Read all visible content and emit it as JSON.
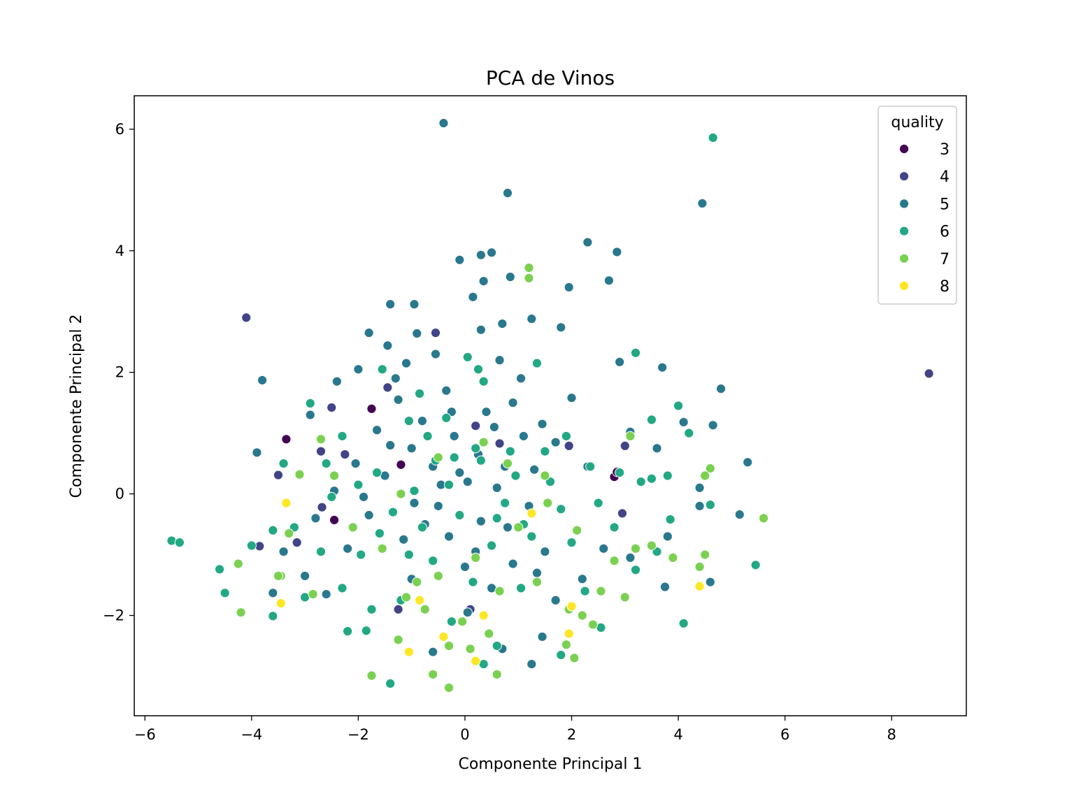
{
  "chart_data": {
    "type": "scatter",
    "title": "PCA de Vinos",
    "xlabel": "Componente Principal 1",
    "ylabel": "Componente Principal 2",
    "xlim": [
      -6.2,
      9.4
    ],
    "ylim": [
      -3.65,
      6.55
    ],
    "xticks": [
      -6,
      -4,
      -2,
      0,
      2,
      4,
      6,
      8
    ],
    "yticks": [
      -2,
      0,
      2,
      4,
      6
    ],
    "legend": {
      "title": "quality",
      "placement": "top-right"
    },
    "grid": false,
    "series": [
      {
        "name": "3",
        "color": "#440154",
        "points": [
          [
            -3.35,
            0.9
          ],
          [
            -1.75,
            1.4
          ],
          [
            -1.2,
            0.48
          ],
          [
            -2.45,
            -0.43
          ],
          [
            2.8,
            0.28
          ],
          [
            2.85,
            0.36
          ]
        ]
      },
      {
        "name": "4",
        "color": "#414487",
        "points": [
          [
            -4.1,
            2.9
          ],
          [
            8.7,
            1.98
          ],
          [
            -0.55,
            2.65
          ],
          [
            -2.5,
            1.42
          ],
          [
            -3.5,
            0.31
          ],
          [
            -2.7,
            0.7
          ],
          [
            -2.68,
            -0.22
          ],
          [
            -3.15,
            -0.8
          ],
          [
            -3.85,
            -0.86
          ],
          [
            -1.25,
            -1.9
          ],
          [
            0.1,
            -1.9
          ],
          [
            1.95,
            0.79
          ],
          [
            3.0,
            0.79
          ],
          [
            0.65,
            0.83
          ],
          [
            0.2,
            1.12
          ],
          [
            -1.45,
            1.75
          ],
          [
            -2.25,
            0.65
          ],
          [
            2.95,
            -0.32
          ]
        ]
      },
      {
        "name": "5",
        "color": "#2a788e",
        "points": [
          [
            -0.4,
            6.1
          ],
          [
            0.8,
            4.95
          ],
          [
            4.45,
            4.78
          ],
          [
            2.3,
            4.14
          ],
          [
            2.85,
            3.98
          ],
          [
            0.3,
            3.93
          ],
          [
            0.5,
            3.97
          ],
          [
            -0.1,
            3.85
          ],
          [
            0.85,
            3.57
          ],
          [
            2.7,
            3.51
          ],
          [
            0.35,
            3.5
          ],
          [
            1.95,
            3.4
          ],
          [
            -1.4,
            3.12
          ],
          [
            -0.95,
            3.12
          ],
          [
            0.15,
            3.24
          ],
          [
            -1.8,
            2.65
          ],
          [
            -0.9,
            2.64
          ],
          [
            1.25,
            2.88
          ],
          [
            0.7,
            2.8
          ],
          [
            1.8,
            2.74
          ],
          [
            -1.45,
            2.44
          ],
          [
            -1.1,
            2.15
          ],
          [
            3.7,
            2.08
          ],
          [
            4.8,
            1.73
          ],
          [
            2.9,
            2.17
          ],
          [
            -3.8,
            1.87
          ],
          [
            -2.4,
            1.85
          ],
          [
            -2.0,
            2.05
          ],
          [
            2.0,
            1.58
          ],
          [
            4.65,
            1.13
          ],
          [
            4.1,
            1.18
          ],
          [
            -3.9,
            0.68
          ],
          [
            3.1,
            1.02
          ],
          [
            5.3,
            0.52
          ],
          [
            4.4,
            0.1
          ],
          [
            5.15,
            -0.34
          ],
          [
            4.6,
            -1.45
          ],
          [
            3.75,
            -1.53
          ],
          [
            -3.6,
            -1.63
          ],
          [
            -2.6,
            -1.65
          ],
          [
            -1.4,
            -3.12
          ],
          [
            1.25,
            -2.8
          ],
          [
            1.45,
            -2.35
          ],
          [
            0.05,
            -1.95
          ],
          [
            0.3,
            -0.45
          ],
          [
            0.6,
            0.1
          ],
          [
            -0.6,
            0.45
          ],
          [
            -0.8,
            1.2
          ],
          [
            -1.0,
            0.75
          ],
          [
            -0.2,
            0.95
          ],
          [
            0.4,
            1.35
          ],
          [
            0.9,
            1.5
          ],
          [
            1.1,
            0.95
          ],
          [
            -0.5,
            -0.2
          ],
          [
            0.05,
            0.2
          ],
          [
            -1.5,
            0.3
          ],
          [
            -1.8,
            -0.35
          ],
          [
            -0.3,
            -0.7
          ],
          [
            0.8,
            -0.55
          ],
          [
            1.5,
            -0.95
          ],
          [
            2.2,
            -1.4
          ],
          [
            -2.2,
            -0.9
          ],
          [
            -2.8,
            -0.4
          ],
          [
            -3.0,
            -1.35
          ],
          [
            -1.0,
            -1.4
          ],
          [
            0.5,
            -1.55
          ],
          [
            1.7,
            -1.75
          ],
          [
            -0.35,
            1.7
          ],
          [
            0.65,
            2.2
          ],
          [
            1.05,
            1.9
          ],
          [
            -1.25,
            1.55
          ],
          [
            -1.65,
            1.05
          ],
          [
            0.25,
            0.65
          ],
          [
            -0.1,
            0.35
          ],
          [
            -0.75,
            -0.5
          ],
          [
            0.2,
            -0.95
          ],
          [
            1.3,
            0.4
          ],
          [
            1.45,
            1.15
          ],
          [
            -2.05,
            0.5
          ],
          [
            -2.45,
            0.05
          ],
          [
            -1.15,
            -0.75
          ],
          [
            0.0,
            -1.2
          ],
          [
            0.9,
            -1.15
          ],
          [
            2.6,
            -0.9
          ],
          [
            3.1,
            -1.05
          ],
          [
            3.8,
            -0.7
          ],
          [
            -0.55,
            2.3
          ],
          [
            0.3,
            2.7
          ],
          [
            1.7,
            0.85
          ],
          [
            -0.95,
            -0.15
          ],
          [
            0.75,
            0.45
          ],
          [
            -1.4,
            0.8
          ],
          [
            -0.25,
            1.35
          ],
          [
            1.2,
            -0.2
          ],
          [
            -2.9,
            1.3
          ],
          [
            -3.4,
            -0.95
          ],
          [
            2.3,
            0.45
          ],
          [
            3.6,
            0.75
          ],
          [
            4.4,
            -0.2
          ],
          [
            -0.6,
            -2.6
          ],
          [
            0.7,
            -2.55
          ],
          [
            -1.3,
            1.9
          ],
          [
            0.55,
            1.1
          ],
          [
            -0.45,
            0.15
          ],
          [
            -1.9,
            -0.05
          ],
          [
            1.35,
            -1.3
          ]
        ]
      },
      {
        "name": "6",
        "color": "#22a884",
        "points": [
          [
            4.65,
            5.86
          ],
          [
            3.2,
            2.32
          ],
          [
            3.5,
            1.22
          ],
          [
            4.2,
            1.0
          ],
          [
            4.0,
            1.45
          ],
          [
            4.6,
            -0.18
          ],
          [
            5.45,
            -1.17
          ],
          [
            3.5,
            0.25
          ],
          [
            3.85,
            -0.42
          ],
          [
            4.1,
            -2.13
          ],
          [
            -5.5,
            -0.77
          ],
          [
            -5.35,
            -0.8
          ],
          [
            -4.6,
            -1.24
          ],
          [
            -4.5,
            -1.63
          ],
          [
            -3.6,
            -2.01
          ],
          [
            -2.2,
            -2.26
          ],
          [
            -1.4,
            -3.12
          ],
          [
            -3.4,
            0.5
          ],
          [
            -2.9,
            1.49
          ],
          [
            -1.55,
            2.05
          ],
          [
            -1.75,
            -1.9
          ],
          [
            0.05,
            2.25
          ],
          [
            0.35,
            1.85
          ],
          [
            0.2,
            0.75
          ],
          [
            -0.3,
            0.15
          ],
          [
            -0.95,
            0.05
          ],
          [
            -1.6,
            -0.65
          ],
          [
            -0.6,
            -1.1
          ],
          [
            0.5,
            -0.85
          ],
          [
            1.1,
            -0.5
          ],
          [
            1.8,
            -0.25
          ],
          [
            2.5,
            -0.15
          ],
          [
            2.9,
            0.35
          ],
          [
            3.3,
            0.2
          ],
          [
            -2.3,
            0.95
          ],
          [
            -2.7,
            -0.95
          ],
          [
            -3.2,
            -0.55
          ],
          [
            -2.3,
            -1.55
          ],
          [
            -1.2,
            -1.75
          ],
          [
            -0.25,
            -2.1
          ],
          [
            0.6,
            -2.5
          ],
          [
            1.8,
            -2.65
          ],
          [
            2.55,
            -2.2
          ],
          [
            3.2,
            -1.25
          ],
          [
            3.6,
            -0.95
          ],
          [
            -0.7,
            0.95
          ],
          [
            0.3,
            0.55
          ],
          [
            1.5,
            0.7
          ],
          [
            -1.05,
            1.2
          ],
          [
            -0.35,
            1.25
          ],
          [
            -2.0,
            0.15
          ],
          [
            -1.35,
            -0.3
          ],
          [
            0.75,
            -0.15
          ],
          [
            1.25,
            -0.7
          ],
          [
            2.0,
            -0.8
          ],
          [
            -0.1,
            -0.35
          ],
          [
            -1.65,
            0.35
          ],
          [
            -0.55,
            0.55
          ],
          [
            0.95,
            0.3
          ],
          [
            2.35,
            0.45
          ],
          [
            -3.6,
            -0.6
          ],
          [
            -2.5,
            -0.05
          ],
          [
            -1.05,
            -1.0
          ],
          [
            0.15,
            -1.45
          ],
          [
            1.05,
            -1.55
          ],
          [
            2.25,
            -1.6
          ],
          [
            -0.85,
            1.65
          ],
          [
            0.25,
            2.05
          ],
          [
            1.35,
            2.15
          ],
          [
            -4.0,
            -0.85
          ],
          [
            -3.0,
            -1.7
          ],
          [
            -1.85,
            -2.25
          ],
          [
            0.35,
            -2.8
          ],
          [
            0.85,
            0.7
          ],
          [
            -0.2,
            0.6
          ],
          [
            0.6,
            -0.4
          ],
          [
            -0.8,
            -0.55
          ],
          [
            1.6,
            0.2
          ],
          [
            2.8,
            -0.55
          ],
          [
            -1.95,
            -1.0
          ],
          [
            -2.6,
            0.5
          ],
          [
            1.9,
            0.95
          ],
          [
            3.8,
            0.3
          ]
        ]
      },
      {
        "name": "7",
        "color": "#7ad151",
        "points": [
          [
            1.2,
            3.72
          ],
          [
            1.2,
            3.55
          ],
          [
            4.6,
            0.42
          ],
          [
            5.6,
            -0.4
          ],
          [
            4.5,
            -1.0
          ],
          [
            3.5,
            -0.85
          ],
          [
            4.4,
            -1.2
          ],
          [
            3.0,
            -1.7
          ],
          [
            -4.25,
            -1.15
          ],
          [
            -4.2,
            -1.95
          ],
          [
            -3.45,
            -1.35
          ],
          [
            -3.3,
            -0.65
          ],
          [
            -2.85,
            -1.65
          ],
          [
            -1.75,
            -2.99
          ],
          [
            -0.6,
            -2.97
          ],
          [
            -0.3,
            -3.19
          ],
          [
            0.6,
            -2.97
          ],
          [
            2.05,
            -2.7
          ],
          [
            1.9,
            -2.48
          ],
          [
            2.4,
            -2.15
          ],
          [
            0.45,
            -2.3
          ],
          [
            -0.05,
            -2.1
          ],
          [
            -1.25,
            -2.4
          ],
          [
            -1.1,
            -1.7
          ],
          [
            -0.5,
            -1.35
          ],
          [
            0.2,
            -1.05
          ],
          [
            1.0,
            -0.55
          ],
          [
            1.55,
            -0.15
          ],
          [
            2.1,
            -0.6
          ],
          [
            2.8,
            -1.1
          ],
          [
            3.2,
            -0.9
          ],
          [
            -3.1,
            0.32
          ],
          [
            -2.7,
            0.9
          ],
          [
            -0.5,
            0.6
          ],
          [
            0.35,
            0.85
          ],
          [
            -1.2,
            0.0
          ],
          [
            -2.45,
            0.3
          ],
          [
            -3.5,
            -1.35
          ],
          [
            -0.9,
            -1.45
          ],
          [
            -0.75,
            -1.9
          ],
          [
            0.65,
            -1.6
          ],
          [
            1.35,
            -1.45
          ],
          [
            2.55,
            -1.6
          ],
          [
            3.9,
            -1.05
          ],
          [
            0.1,
            -2.55
          ],
          [
            -0.3,
            -2.5
          ],
          [
            1.95,
            -1.9
          ],
          [
            2.2,
            -2.0
          ],
          [
            -1.55,
            -0.9
          ],
          [
            -2.1,
            -0.55
          ],
          [
            0.8,
            0.5
          ],
          [
            3.1,
            0.95
          ],
          [
            4.5,
            0.3
          ],
          [
            1.5,
            0.3
          ]
        ]
      },
      {
        "name": "8",
        "color": "#fde725",
        "points": [
          [
            -3.35,
            -0.15
          ],
          [
            -3.45,
            -1.8
          ],
          [
            -1.05,
            -2.6
          ],
          [
            -0.4,
            -2.35
          ],
          [
            0.2,
            -2.75
          ],
          [
            0.35,
            -2.0
          ],
          [
            1.25,
            -0.32
          ],
          [
            1.95,
            -2.3
          ],
          [
            2.0,
            -1.85
          ],
          [
            4.4,
            -1.52
          ],
          [
            -0.85,
            -1.75
          ]
        ]
      }
    ]
  }
}
